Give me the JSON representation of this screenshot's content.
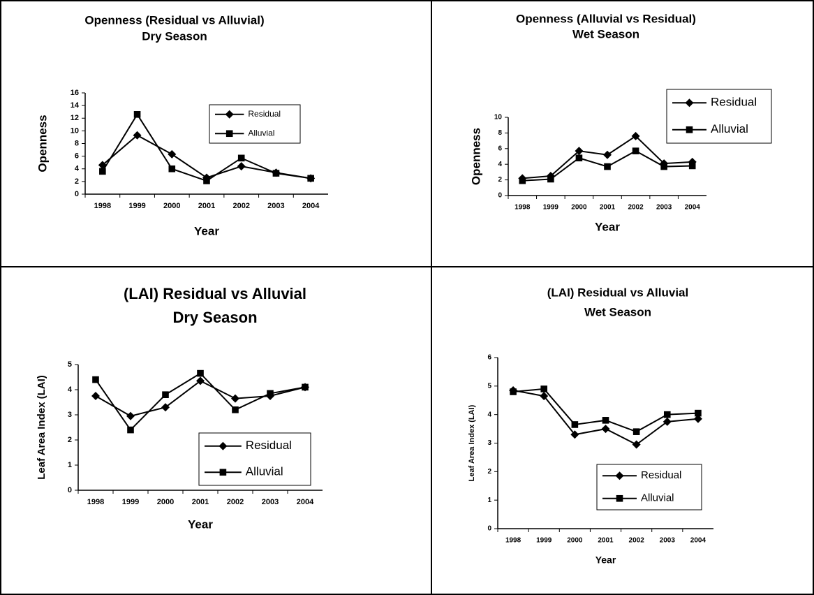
{
  "chart_data": [
    {
      "type": "line",
      "title": "Openness (Residual vs Alluvial)",
      "subtitle": "Dry Season",
      "x_label": "Year",
      "y_label": "Openness",
      "categories": [
        "1998",
        "1999",
        "2000",
        "2001",
        "2002",
        "2003",
        "2004"
      ],
      "series": [
        {
          "name": "Residual",
          "color": "#000000",
          "marker": "diamond",
          "values": [
            4.6,
            9.3,
            6.3,
            2.6,
            4.4,
            3.4,
            2.5
          ]
        },
        {
          "name": "Alluvial",
          "color": "#000000",
          "marker": "square",
          "values": [
            3.6,
            12.6,
            4.0,
            2.1,
            5.7,
            3.3,
            2.5
          ]
        }
      ],
      "ylim": [
        0,
        16
      ],
      "yticks": [
        0,
        2,
        4,
        6,
        8,
        10,
        12,
        14,
        16
      ],
      "grid": false,
      "legend": "upper right"
    },
    {
      "type": "line",
      "title": "Openness (Alluvial vs Residual)",
      "subtitle": "Wet Season",
      "x_label": "Year",
      "y_label": "Openness",
      "categories": [
        "1998",
        "1999",
        "2000",
        "2001",
        "2002",
        "2003",
        "2004"
      ],
      "series": [
        {
          "name": "Residual",
          "color": "#000000",
          "marker": "diamond",
          "values": [
            2.2,
            2.5,
            5.7,
            5.2,
            7.6,
            4.1,
            4.3
          ]
        },
        {
          "name": "Alluvial",
          "color": "#000000",
          "marker": "square",
          "values": [
            1.9,
            2.1,
            4.8,
            3.7,
            5.7,
            3.7,
            3.8
          ]
        }
      ],
      "ylim": [
        0,
        10
      ],
      "yticks": [
        0,
        2,
        4,
        6,
        8,
        10
      ],
      "grid": false,
      "legend": "upper right"
    },
    {
      "type": "line",
      "title": "(LAI) Residual vs Alluvial",
      "subtitle": "Dry Season",
      "x_label": "Year",
      "y_label": "Leaf Area Index (LAI)",
      "categories": [
        "1998",
        "1999",
        "2000",
        "2001",
        "2002",
        "2003",
        "2004"
      ],
      "series": [
        {
          "name": "Residual",
          "color": "#000000",
          "marker": "diamond",
          "values": [
            3.75,
            2.95,
            3.3,
            4.35,
            3.65,
            3.75,
            4.1
          ]
        },
        {
          "name": "Alluvial",
          "color": "#000000",
          "marker": "square",
          "values": [
            4.4,
            2.4,
            3.8,
            4.65,
            3.2,
            3.85,
            4.1
          ]
        }
      ],
      "ylim": [
        0,
        5
      ],
      "yticks": [
        0,
        1,
        2,
        3,
        4,
        5
      ],
      "grid": false,
      "legend": "lower right"
    },
    {
      "type": "line",
      "title": "(LAI) Residual vs Alluvial",
      "subtitle": "Wet Season",
      "x_label": "Year",
      "y_label": "Leaf Area Index (LAI)",
      "categories": [
        "1998",
        "1999",
        "2000",
        "2001",
        "2002",
        "2003",
        "2004"
      ],
      "series": [
        {
          "name": "Residual",
          "color": "#000000",
          "marker": "diamond",
          "values": [
            4.85,
            4.65,
            3.3,
            3.5,
            2.95,
            3.75,
            3.85
          ]
        },
        {
          "name": "Alluvial",
          "color": "#000000",
          "marker": "square",
          "values": [
            4.8,
            4.9,
            3.65,
            3.8,
            3.4,
            4.0,
            4.05
          ]
        }
      ],
      "ylim": [
        0,
        6
      ],
      "yticks": [
        0,
        1,
        2,
        3,
        4,
        5,
        6
      ],
      "grid": false,
      "legend": "lower right"
    }
  ]
}
